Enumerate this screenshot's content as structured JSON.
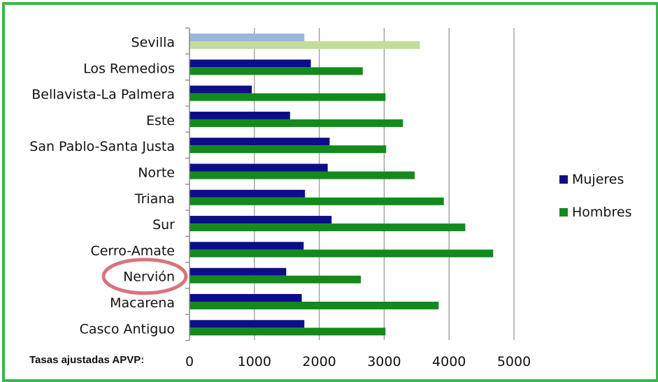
{
  "chart_data": {
    "type": "bar",
    "orientation": "horizontal",
    "categories": [
      "Sevilla",
      "Los Remedios",
      "Bellavista-La Palmera",
      "Este",
      "San Pablo-Santa Justa",
      "Norte",
      "Triana",
      "Sur",
      "Cerro-Amate",
      "Nervión",
      "Macarena",
      "Casco Antiguo"
    ],
    "series": [
      {
        "name": "Mujeres",
        "color": "#0d0d8c",
        "values": [
          1770,
          1870,
          960,
          1550,
          2160,
          2130,
          1780,
          2190,
          1760,
          1490,
          1730,
          1770
        ]
      },
      {
        "name": "Hombres",
        "color": "#138a1b",
        "values": [
          3550,
          2670,
          3020,
          3290,
          3030,
          3470,
          3920,
          4250,
          4680,
          2640,
          3840,
          3020
        ]
      }
    ],
    "highlight": {
      "category": "Sevilla",
      "colors": [
        "#9ab8dc",
        "#c3dc9c"
      ]
    },
    "annotation_circle_category": "Nervión",
    "annotation_color": "#d9737c",
    "xlim": [
      0,
      5000
    ],
    "xticks": [
      "0",
      "1000",
      "2000",
      "3000",
      "4000",
      "5000"
    ],
    "grid": true,
    "legend": "right",
    "footnote": "Tasas ajustadas APVP:",
    "frame_color": "#3cb54a"
  }
}
